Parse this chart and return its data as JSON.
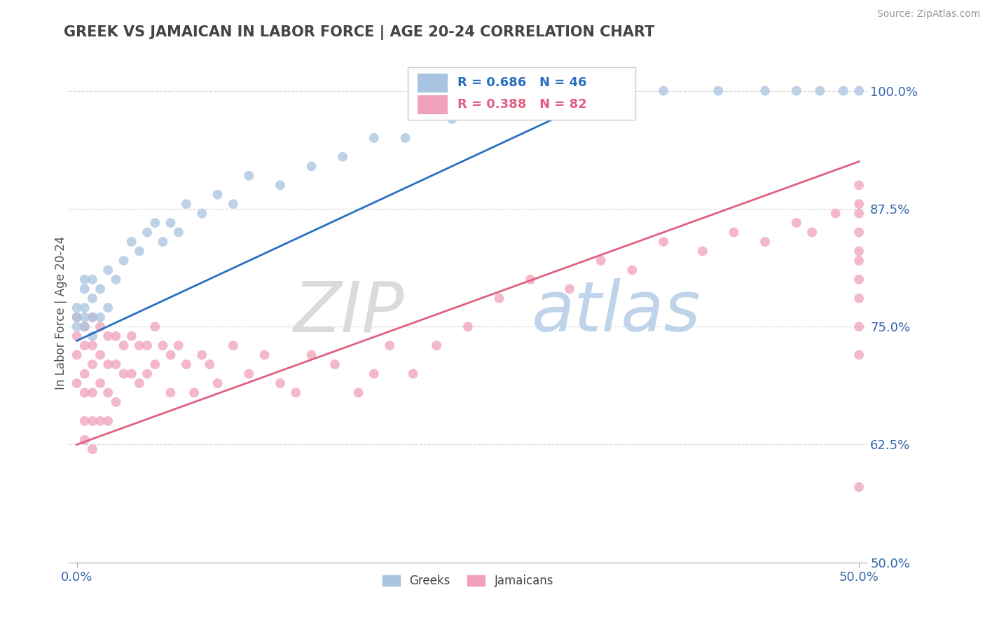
{
  "title": "GREEK VS JAMAICAN IN LABOR FORCE | AGE 20-24 CORRELATION CHART",
  "source": "Source: ZipAtlas.com",
  "ylabel": "In Labor Force | Age 20-24",
  "xlim": [
    -0.01,
    1.01
  ],
  "ylim": [
    0.5,
    1.03
  ],
  "yticks": [
    0.5,
    0.625,
    0.75,
    0.875,
    1.0
  ],
  "ytick_labels": [
    "50.0%",
    "62.5%",
    "75.0%",
    "87.5%",
    "100.0%"
  ],
  "xtick_left_label": "0.0%",
  "xtick_right_label": "50.0%",
  "greek_R": 0.686,
  "greek_N": 46,
  "jamaican_R": 0.388,
  "jamaican_N": 82,
  "greek_color": "#a8c4e0",
  "jamaican_color": "#f0a0b8",
  "greek_line_color": "#2970c0",
  "jamaican_line_color": "#e06080",
  "background_color": "#ffffff",
  "greek_x": [
    0.0,
    0.0,
    0.0,
    0.01,
    0.01,
    0.01,
    0.01,
    0.01,
    0.02,
    0.02,
    0.02,
    0.02,
    0.03,
    0.03,
    0.04,
    0.04,
    0.05,
    0.06,
    0.07,
    0.08,
    0.09,
    0.1,
    0.11,
    0.12,
    0.13,
    0.14,
    0.16,
    0.18,
    0.2,
    0.22,
    0.26,
    0.3,
    0.34,
    0.38,
    0.42,
    0.48,
    0.55,
    0.6,
    0.68,
    0.75,
    0.82,
    0.88,
    0.92,
    0.95,
    0.98,
    1.0
  ],
  "greek_y": [
    0.76,
    0.75,
    0.77,
    0.75,
    0.76,
    0.77,
    0.79,
    0.8,
    0.74,
    0.76,
    0.78,
    0.8,
    0.76,
    0.79,
    0.77,
    0.81,
    0.8,
    0.82,
    0.84,
    0.83,
    0.85,
    0.86,
    0.84,
    0.86,
    0.85,
    0.88,
    0.87,
    0.89,
    0.88,
    0.91,
    0.9,
    0.92,
    0.93,
    0.95,
    0.95,
    0.97,
    0.98,
    0.99,
    1.0,
    1.0,
    1.0,
    1.0,
    1.0,
    1.0,
    1.0,
    1.0
  ],
  "jamaican_x": [
    0.0,
    0.0,
    0.0,
    0.0,
    0.01,
    0.01,
    0.01,
    0.01,
    0.01,
    0.01,
    0.02,
    0.02,
    0.02,
    0.02,
    0.02,
    0.02,
    0.03,
    0.03,
    0.03,
    0.03,
    0.04,
    0.04,
    0.04,
    0.04,
    0.05,
    0.05,
    0.05,
    0.06,
    0.06,
    0.07,
    0.07,
    0.08,
    0.08,
    0.09,
    0.09,
    0.1,
    0.1,
    0.11,
    0.12,
    0.12,
    0.13,
    0.14,
    0.15,
    0.16,
    0.17,
    0.18,
    0.2,
    0.22,
    0.24,
    0.26,
    0.28,
    0.3,
    0.33,
    0.36,
    0.38,
    0.4,
    0.43,
    0.46,
    0.5,
    0.54,
    0.58,
    0.63,
    0.67,
    0.71,
    0.75,
    0.8,
    0.84,
    0.88,
    0.92,
    0.94,
    0.97,
    1.0,
    1.0,
    1.0,
    1.0,
    1.0,
    1.0,
    1.0,
    1.0,
    1.0,
    1.0,
    1.0
  ],
  "jamaican_y": [
    0.76,
    0.74,
    0.72,
    0.69,
    0.75,
    0.73,
    0.7,
    0.68,
    0.65,
    0.63,
    0.76,
    0.73,
    0.71,
    0.68,
    0.65,
    0.62,
    0.75,
    0.72,
    0.69,
    0.65,
    0.74,
    0.71,
    0.68,
    0.65,
    0.74,
    0.71,
    0.67,
    0.73,
    0.7,
    0.74,
    0.7,
    0.73,
    0.69,
    0.73,
    0.7,
    0.75,
    0.71,
    0.73,
    0.72,
    0.68,
    0.73,
    0.71,
    0.68,
    0.72,
    0.71,
    0.69,
    0.73,
    0.7,
    0.72,
    0.69,
    0.68,
    0.72,
    0.71,
    0.68,
    0.7,
    0.73,
    0.7,
    0.73,
    0.75,
    0.78,
    0.8,
    0.79,
    0.82,
    0.81,
    0.84,
    0.83,
    0.85,
    0.84,
    0.86,
    0.85,
    0.87,
    0.9,
    0.88,
    0.87,
    0.85,
    0.83,
    0.82,
    0.8,
    0.78,
    0.75,
    0.72,
    0.58
  ],
  "greek_line_x0": 0.0,
  "greek_line_y0": 0.735,
  "greek_line_x1": 0.7,
  "greek_line_y1": 1.005,
  "jamaican_line_x0": 0.0,
  "jamaican_line_y0": 0.625,
  "jamaican_line_x1": 1.0,
  "jamaican_line_y1": 0.925
}
